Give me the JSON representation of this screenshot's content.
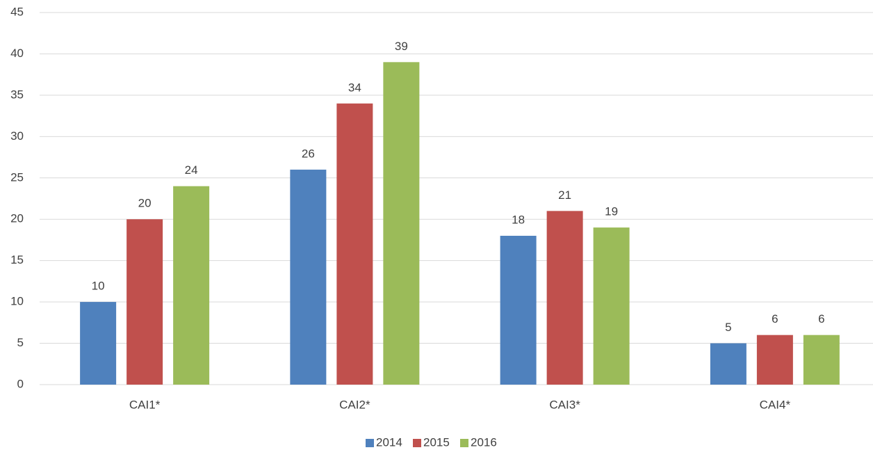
{
  "chart_data": {
    "type": "bar",
    "categories": [
      "CAI1*",
      "CAI2*",
      "CAI3*",
      "CAI4*"
    ],
    "series": [
      {
        "name": "2014",
        "color": "#4f81bd",
        "values": [
          10,
          26,
          18,
          5
        ]
      },
      {
        "name": "2015",
        "color": "#c0504d",
        "values": [
          20,
          34,
          21,
          6
        ]
      },
      {
        "name": "2016",
        "color": "#9bbb59",
        "values": [
          24,
          39,
          19,
          6
        ]
      }
    ],
    "ylim": [
      0,
      45
    ],
    "yticks": [
      0,
      5,
      10,
      15,
      20,
      25,
      30,
      35,
      40,
      45
    ],
    "grid": true,
    "legend": "bottom"
  }
}
